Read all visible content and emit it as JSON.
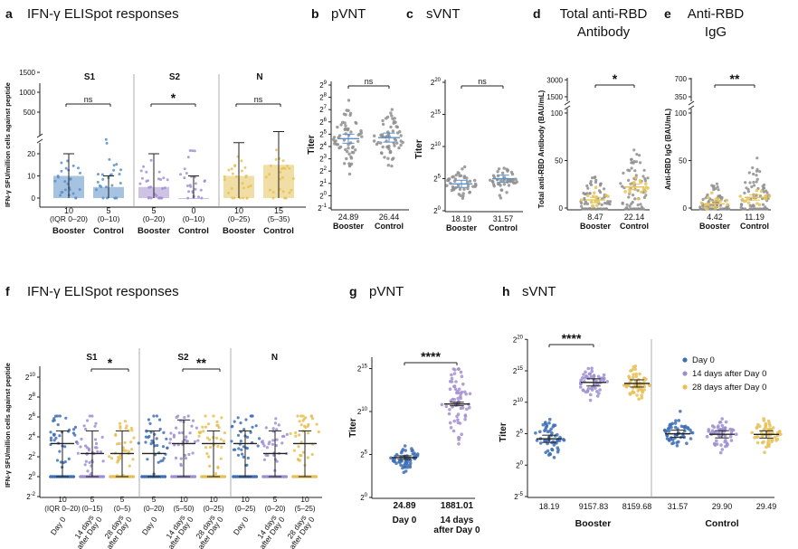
{
  "figure_panels": [
    {
      "letter": "a",
      "title": "IFN-γ ELISpot responses"
    },
    {
      "letter": "b",
      "title": "pVNT"
    },
    {
      "letter": "c",
      "title": "sVNT"
    },
    {
      "letter": "d",
      "title_lines": [
        "Total anti-RBD",
        "Antibody"
      ]
    },
    {
      "letter": "e",
      "title_lines": [
        "Anti-RBD",
        "IgG"
      ]
    },
    {
      "letter": "f",
      "title": "IFN-γ ELISpot responses"
    },
    {
      "letter": "g",
      "title": "pVNT"
    },
    {
      "letter": "h",
      "title": "sVNT"
    }
  ],
  "colors": {
    "booster_blue": "#5b8fc9",
    "s2_purple": "#a58fd0",
    "n_yellow": "#e6c35a",
    "day0": "#3e6fb5",
    "day14": "#9c8fd1",
    "day28": "#e7bf55",
    "grey_dot": "#8e8e8e"
  },
  "chart_data": [
    {
      "panel": "a",
      "type": "bar",
      "ylabel": "IFN-γ SFU/million cells against peptide",
      "yticks_lower": [
        0,
        10,
        20
      ],
      "yticks_upper": [
        500,
        1000,
        1500
      ],
      "groups": [
        {
          "name": "S1",
          "significance": "ns",
          "categories": [
            "Booster",
            "Control"
          ],
          "values": [
            10,
            5
          ],
          "labels": [
            [
              "10",
              "(IQR 0–20)"
            ],
            [
              "5",
              "(0–10)"
            ]
          ]
        },
        {
          "name": "S2",
          "significance": "*",
          "categories": [
            "Booster",
            "Control"
          ],
          "values": [
            5,
            0
          ],
          "labels": [
            [
              "5",
              "(0–20)"
            ],
            [
              "0",
              "(0–10)"
            ]
          ]
        },
        {
          "name": "N",
          "significance": "ns",
          "categories": [
            "Booster",
            "Control"
          ],
          "values": [
            10,
            15
          ],
          "labels": [
            [
              "10",
              "(0–25)"
            ],
            [
              "15",
              "(5–35)"
            ]
          ]
        }
      ]
    },
    {
      "panel": "b",
      "type": "scatter",
      "ylabel": "Titer",
      "ytick_exponents": [
        -1,
        0,
        1,
        2,
        3,
        4,
        5,
        6,
        7,
        8,
        9
      ],
      "tick_base": "2",
      "categories": [
        "Booster",
        "Control"
      ],
      "values": [
        24.89,
        26.44
      ],
      "value_labels": [
        "24.89",
        "26.44"
      ],
      "significance": "ns"
    },
    {
      "panel": "c",
      "type": "scatter",
      "ylabel": "Titer",
      "ytick_exponents": [
        0,
        5,
        10,
        15,
        20
      ],
      "tick_base": "2",
      "categories": [
        "Booster",
        "Control"
      ],
      "values": [
        18.19,
        31.57
      ],
      "value_labels": [
        "18.19",
        "31.57"
      ],
      "significance": "ns"
    },
    {
      "panel": "d",
      "type": "scatter",
      "ylabel": "Total anti-RBD Antibody (BAU/mL)",
      "yticks_lower": [
        0,
        50,
        100
      ],
      "yticks_upper": [
        1500,
        3000
      ],
      "categories": [
        "Booster",
        "Control"
      ],
      "values": [
        8.47,
        22.14
      ],
      "value_labels": [
        "8.47",
        "22.14"
      ],
      "significance": "*"
    },
    {
      "panel": "e",
      "type": "scatter",
      "ylabel": "Anti-RBD IgG (BAU/mL)",
      "yticks_lower": [
        0,
        50,
        100
      ],
      "yticks_upper": [
        350,
        700
      ],
      "categories": [
        "Booster",
        "Control"
      ],
      "values": [
        4.42,
        11.19
      ],
      "value_labels": [
        "4.42",
        "11.19"
      ],
      "significance": "**"
    },
    {
      "panel": "f",
      "type": "scatter",
      "ylabel": "IFN-γ SFU/million cells against peptide",
      "ytick_exponents": [
        -2,
        0,
        2,
        4,
        6,
        8,
        10
      ],
      "tick_base": "2",
      "groups": [
        {
          "name": "S1",
          "significance": "*",
          "categories": [
            "Day 0",
            "14 days after Day 0",
            "28 days after Day 0"
          ],
          "values": [
            10,
            5,
            5
          ],
          "labels": [
            [
              "10",
              "(IQR 0–20)"
            ],
            [
              "5",
              "(0–15)"
            ],
            [
              "5",
              "(0–5)"
            ]
          ]
        },
        {
          "name": "S2",
          "significance": "**",
          "categories": [
            "Day 0",
            "14 days after Day 0",
            "28 days after Day 0"
          ],
          "values": [
            5,
            10,
            10
          ],
          "labels": [
            [
              "5",
              "(0–20)"
            ],
            [
              "10",
              "(5–50)"
            ],
            [
              "10",
              "(0–25)"
            ]
          ]
        },
        {
          "name": "N",
          "significance": "",
          "categories": [
            "Day 0",
            "14 days after Day 0",
            "28 days after Day 0"
          ],
          "values": [
            10,
            5,
            10
          ],
          "labels": [
            [
              "10",
              "(0–25)"
            ],
            [
              "5",
              "(0–20)"
            ],
            [
              "10",
              "(5–25)"
            ]
          ]
        }
      ]
    },
    {
      "panel": "g",
      "type": "scatter",
      "ylabel": "Titer",
      "ytick_exponents": [
        0,
        5,
        10,
        15
      ],
      "tick_base": "2",
      "categories": [
        "Day 0",
        "14 days after Day 0"
      ],
      "category_lines": [
        [
          "Day 0"
        ],
        [
          "14 days",
          "after Day 0"
        ]
      ],
      "values": [
        24.89,
        1881.01
      ],
      "value_labels": [
        "24.89",
        "1881.01"
      ],
      "significance": "****"
    },
    {
      "panel": "h",
      "type": "scatter",
      "ylabel": "Titer",
      "ytick_exponents": [
        -5,
        0,
        5,
        10,
        15,
        20
      ],
      "tick_base": "2",
      "series": [
        {
          "name": "Day 0"
        },
        {
          "name": "14 days after Day 0"
        },
        {
          "name": "28 days after Day 0"
        }
      ],
      "groups": [
        {
          "name": "Booster",
          "values": [
            18.19,
            9157.83,
            8159.68
          ],
          "value_labels": [
            "18.19",
            "9157.83",
            "8159.68"
          ]
        },
        {
          "name": "Control",
          "values": [
            31.57,
            29.9,
            29.49
          ],
          "value_labels": [
            "31.57",
            "29.90",
            "29.49"
          ]
        }
      ],
      "significance": "****",
      "legend": "top-right"
    }
  ]
}
